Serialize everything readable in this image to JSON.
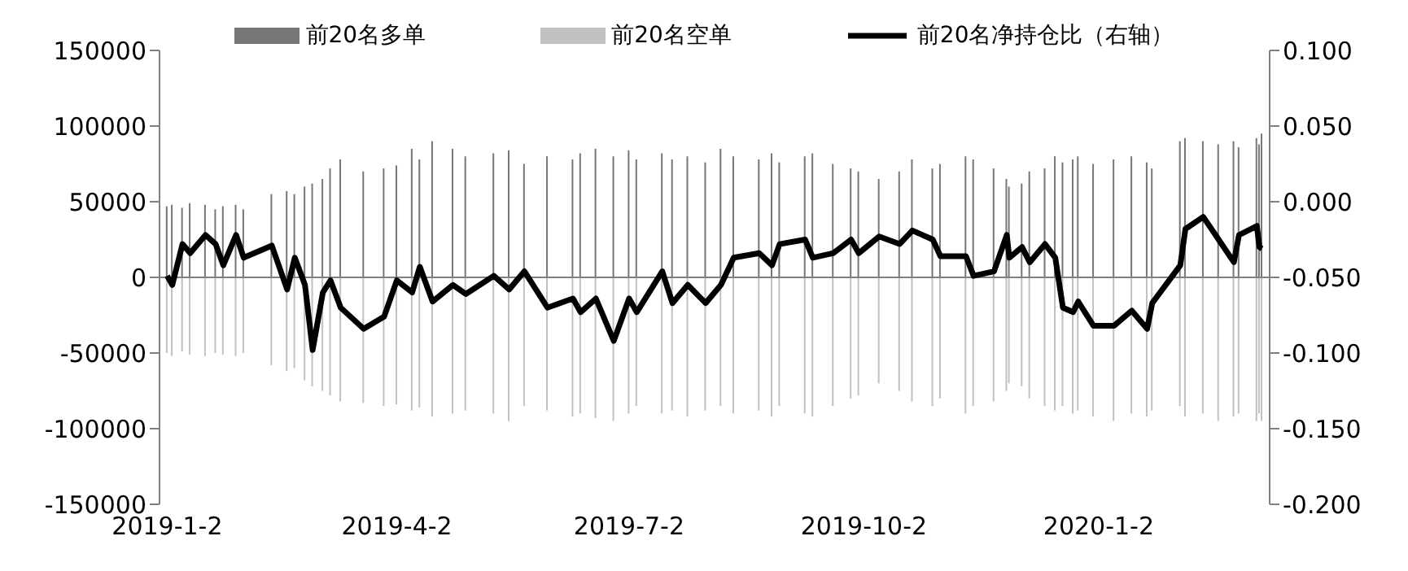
{
  "chart_data": {
    "type": "bar",
    "x": [
      "2019-01-02",
      "2019-01-04",
      "2019-01-08",
      "2019-01-11",
      "2019-01-17",
      "2019-01-21",
      "2019-01-24",
      "2019-01-29",
      "2019-02-01",
      "2019-02-12",
      "2019-02-18",
      "2019-02-21",
      "2019-02-25",
      "2019-02-28",
      "2019-03-04",
      "2019-03-07",
      "2019-03-11",
      "2019-03-20",
      "2019-03-28",
      "2019-04-02",
      "2019-04-08",
      "2019-04-11",
      "2019-04-16",
      "2019-04-24",
      "2019-04-29",
      "2019-05-10",
      "2019-05-16",
      "2019-05-22",
      "2019-05-31",
      "2019-06-10",
      "2019-06-13",
      "2019-06-19",
      "2019-06-26",
      "2019-07-02",
      "2019-07-05",
      "2019-07-15",
      "2019-07-19",
      "2019-07-25",
      "2019-08-01",
      "2019-08-07",
      "2019-08-12",
      "2019-08-22",
      "2019-08-27",
      "2019-08-30",
      "2019-09-09",
      "2019-09-12",
      "2019-09-20",
      "2019-09-27",
      "2019-09-30",
      "2019-10-08",
      "2019-10-16",
      "2019-10-21",
      "2019-10-29",
      "2019-11-01",
      "2019-11-11",
      "2019-11-14",
      "2019-11-22",
      "2019-11-27",
      "2019-11-28",
      "2019-12-03",
      "2019-12-06",
      "2019-12-12",
      "2019-12-16",
      "2019-12-19",
      "2019-12-23",
      "2019-12-25",
      "2019-12-31",
      "2020-01-08",
      "2020-01-15",
      "2020-01-21",
      "2020-01-23",
      "2020-02-03",
      "2020-02-05",
      "2020-02-12",
      "2020-02-18",
      "2020-02-24",
      "2020-02-26",
      "2020-03-04",
      "2020-03-05",
      "2020-03-06"
    ],
    "series": [
      {
        "name": "前20名多单",
        "color": "#767676",
        "values": [
          47000,
          48000,
          46000,
          49000,
          48000,
          45000,
          47000,
          48000,
          45000,
          55000,
          57000,
          55000,
          60000,
          62000,
          65000,
          72000,
          78000,
          70000,
          72000,
          74000,
          85000,
          78000,
          90000,
          85000,
          80000,
          82000,
          84000,
          75000,
          80000,
          78000,
          82000,
          85000,
          80000,
          84000,
          78000,
          82000,
          78000,
          80000,
          76000,
          85000,
          80000,
          78000,
          82000,
          76000,
          80000,
          82000,
          75000,
          72000,
          70000,
          65000,
          70000,
          78000,
          72000,
          75000,
          80000,
          78000,
          72000,
          65000,
          60000,
          62000,
          70000,
          72000,
          80000,
          76000,
          78000,
          80000,
          75000,
          78000,
          80000,
          76000,
          72000,
          90000,
          92000,
          90000,
          88000,
          90000,
          86000,
          92000,
          88000,
          95000
        ]
      },
      {
        "name": "前20名空单",
        "color": "#c0c0c0",
        "values": [
          -50000,
          -52000,
          -49000,
          -51000,
          -52000,
          -50000,
          -51000,
          -52000,
          -50000,
          -58000,
          -62000,
          -60000,
          -68000,
          -72000,
          -75000,
          -78000,
          -82000,
          -83000,
          -85000,
          -84000,
          -88000,
          -86000,
          -92000,
          -90000,
          -88000,
          -90000,
          -95000,
          -85000,
          -88000,
          -92000,
          -90000,
          -93000,
          -95000,
          -90000,
          -85000,
          -90000,
          -88000,
          -92000,
          -88000,
          -85000,
          -90000,
          -88000,
          -92000,
          -85000,
          -90000,
          -92000,
          -85000,
          -80000,
          -78000,
          -70000,
          -75000,
          -82000,
          -85000,
          -80000,
          -90000,
          -85000,
          -82000,
          -75000,
          -70000,
          -72000,
          -80000,
          -85000,
          -88000,
          -85000,
          -90000,
          -88000,
          -92000,
          -95000,
          -90000,
          -92000,
          -88000,
          -85000,
          -92000,
          -90000,
          -95000,
          -92000,
          -90000,
          -95000,
          -90000,
          -95000
        ]
      },
      {
        "name": "前20名净持仓比（右轴）",
        "type": "line",
        "axis": "y2",
        "color": "#000000",
        "values": [
          -0.049,
          -0.055,
          -0.028,
          -0.034,
          -0.022,
          -0.028,
          -0.042,
          -0.022,
          -0.037,
          -0.029,
          -0.058,
          -0.037,
          -0.055,
          -0.098,
          -0.06,
          -0.052,
          -0.07,
          -0.084,
          -0.076,
          -0.052,
          -0.06,
          -0.043,
          -0.066,
          -0.055,
          -0.061,
          -0.049,
          -0.058,
          -0.046,
          -0.07,
          -0.064,
          -0.073,
          -0.064,
          -0.092,
          -0.064,
          -0.073,
          -0.046,
          -0.067,
          -0.055,
          -0.067,
          -0.055,
          -0.037,
          -0.034,
          -0.042,
          -0.028,
          -0.025,
          -0.037,
          -0.034,
          -0.025,
          -0.034,
          -0.023,
          -0.028,
          -0.019,
          -0.025,
          -0.036,
          -0.036,
          -0.049,
          -0.046,
          -0.022,
          -0.037,
          -0.03,
          -0.04,
          -0.028,
          -0.037,
          -0.07,
          -0.073,
          -0.066,
          -0.082,
          -0.082,
          -0.072,
          -0.084,
          -0.067,
          -0.042,
          -0.018,
          -0.01,
          -0.025,
          -0.04,
          -0.022,
          -0.016,
          -0.03,
          -0.031
        ]
      }
    ],
    "xlim": [
      "2018-12-30",
      "2020-03-09"
    ],
    "xticks": [
      {
        "value": "2019-01-02",
        "label": "2019-1-2"
      },
      {
        "value": "2019-04-02",
        "label": "2019-4-2"
      },
      {
        "value": "2019-07-02",
        "label": "2019-7-2"
      },
      {
        "value": "2019-10-02",
        "label": "2019-10-2"
      },
      {
        "value": "2020-01-02",
        "label": "2020-1-2"
      }
    ],
    "ylim": [
      -150000,
      150000
    ],
    "yticks": [
      -150000,
      -100000,
      -50000,
      0,
      50000,
      100000,
      150000
    ],
    "y2lim": [
      -0.2,
      0.1
    ],
    "y2ticks": [
      {
        "value": -0.2,
        "label": "-0.200"
      },
      {
        "value": -0.15,
        "label": "-0.150"
      },
      {
        "value": -0.1,
        "label": "-0.100"
      },
      {
        "value": -0.05,
        "label": "-0.050"
      },
      {
        "value": 0,
        "label": "0.000"
      },
      {
        "value": 0.05,
        "label": "0.050"
      },
      {
        "value": 0.1,
        "label": "0.100"
      }
    ],
    "ref_lines": [
      {
        "axis": "y",
        "value": 0,
        "color": "#808080"
      }
    ],
    "grid": false,
    "legend": "top"
  }
}
